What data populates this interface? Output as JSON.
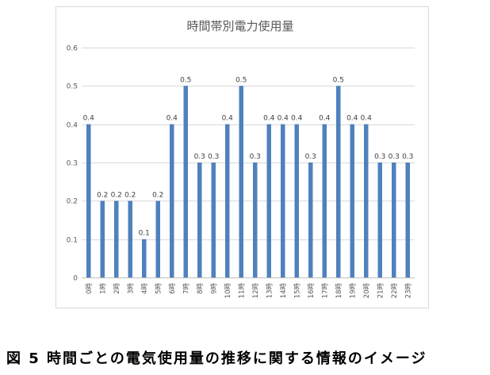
{
  "figure": {
    "caption": "図 5 時間ごとの電気使用量の推移に関する情報のイメージ"
  },
  "chart_data": {
    "type": "bar",
    "title": "時間帯別電力使用量",
    "categories": [
      "0時",
      "1時",
      "2時",
      "3時",
      "4時",
      "5時",
      "6時",
      "7時",
      "8時",
      "9時",
      "10時",
      "11時",
      "12時",
      "13時",
      "14時",
      "15時",
      "16時",
      "17時",
      "18時",
      "19時",
      "20時",
      "21時",
      "22時",
      "23時"
    ],
    "values": [
      0.4,
      0.2,
      0.2,
      0.2,
      0.1,
      0.2,
      0.4,
      0.5,
      0.3,
      0.3,
      0.4,
      0.5,
      0.3,
      0.4,
      0.4,
      0.4,
      0.3,
      0.4,
      0.5,
      0.4,
      0.4,
      0.3,
      0.3,
      0.3
    ],
    "ylim": [
      0,
      0.6
    ],
    "yticks": [
      "0",
      "0.1",
      "0.2",
      "0.3",
      "0.4",
      "0.5",
      "0.6"
    ],
    "grid": true,
    "data_labels": true,
    "legend": "none",
    "colors": {
      "bar": "#4f81bd",
      "grid": "#d9d9d9",
      "axis": "#bfbfbf",
      "text": "#595959",
      "frame": "#d9d9d9"
    }
  }
}
